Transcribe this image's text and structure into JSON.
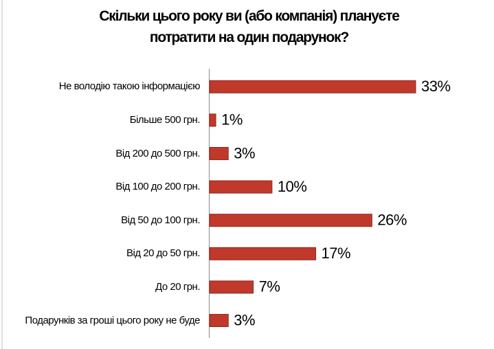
{
  "chart_data": {
    "type": "bar",
    "orientation": "horizontal",
    "title": "Скільки цього року ви (або компанія) плануєте потратити на один подарунок?",
    "categories": [
      "Не володію такою інформацією",
      "Більше 500 грн.",
      "Від 200 до 500 грн.",
      "Від 100 до 200 грн.",
      "Від 50 до 100 грн.",
      "Від 20 до 50 грн.",
      "До 20 грн.",
      "Подарунків за гроші цього року не буде"
    ],
    "values": [
      33,
      1,
      3,
      10,
      26,
      17,
      7,
      3
    ],
    "value_labels": [
      "33%",
      "1%",
      "3%",
      "10%",
      "26%",
      "17%",
      "7%",
      "3%"
    ],
    "color": "#c0392b"
  }
}
